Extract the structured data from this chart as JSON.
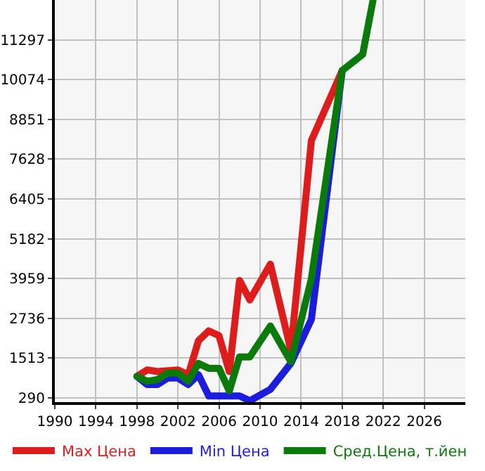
{
  "chart_data": {
    "type": "line",
    "x": [
      1998,
      1999,
      2000,
      2002,
      2003,
      2004,
      2005,
      2006,
      2007,
      2008,
      2009,
      2011,
      2013,
      2015,
      2018
    ],
    "series": [
      {
        "name": "Max Цена",
        "color": "#dd1c1c",
        "values": [
          950,
          1150,
          1100,
          1150,
          1000,
          2050,
          2350,
          2200,
          1100,
          3900,
          3300,
          4400,
          1750,
          8200,
          10350
        ]
      },
      {
        "name": "Min Цена",
        "color": "#1c1cdd",
        "x": [
          1998,
          1999,
          2000,
          2001,
          2002,
          2003,
          2004,
          2005,
          2006,
          2007,
          2008,
          2009,
          2011,
          2013,
          2015,
          2018
        ],
        "values": [
          950,
          700,
          700,
          900,
          900,
          700,
          1000,
          350,
          350,
          350,
          350,
          200,
          550,
          1350,
          2700,
          10350
        ]
      },
      {
        "name": "Сред.Цена, т.йен",
        "color": "#0a7a0a",
        "x": [
          1998,
          1999,
          2000,
          2001,
          2002,
          2003,
          2004,
          2005,
          2006,
          2007,
          2008,
          2009,
          2011,
          2013,
          2015,
          2018,
          2020,
          2021
        ],
        "values": [
          950,
          800,
          850,
          1050,
          1050,
          800,
          1350,
          1200,
          1200,
          500,
          1550,
          1550,
          2500,
          1400,
          3950,
          10350,
          10850,
          12500
        ]
      }
    ],
    "xlim": [
      1990,
      2030
    ],
    "xticks": [
      1990,
      1994,
      1998,
      2002,
      2006,
      2010,
      2014,
      2018,
      2022,
      2026
    ],
    "ylim": [
      160,
      12520
    ],
    "yticks": [
      290,
      1513,
      2736,
      3959,
      5182,
      6405,
      7628,
      8851,
      10074,
      11297
    ],
    "grid": true,
    "legend": "bottom",
    "marker": "none",
    "line_style": "solid"
  }
}
